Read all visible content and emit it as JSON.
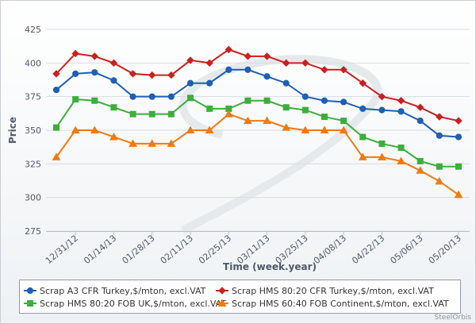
{
  "chart_data": {
    "type": "line",
    "x_label": "Time (week.year)",
    "y_label": "Price",
    "credit": "SteelOrbis",
    "categories": [
      null,
      "12/31/12",
      null,
      "01/14/13",
      null,
      "01/28/13",
      null,
      "02/11/13",
      null,
      "02/25/13",
      null,
      "03/11/13",
      null,
      "03/25/13",
      null,
      "04/08/13",
      null,
      "04/22/13",
      null,
      "05/06/13",
      null,
      "05/20/13"
    ],
    "series": [
      {
        "name": "Scrap A3 CFR Turkey,$/mton, excl.VAT",
        "color": "#1f5fb5",
        "marker": "circle",
        "values": [
          380,
          392,
          393,
          387,
          375,
          375,
          375,
          385,
          385,
          395,
          395,
          390,
          385,
          375,
          372,
          371,
          366,
          365,
          364,
          357,
          346,
          345
        ]
      },
      {
        "name": "Scrap HMS 80:20 CFR Turkey,$/mton, excl.VAT",
        "color": "#cc1f1f",
        "marker": "diamond",
        "values": [
          392,
          407,
          405,
          400,
          392,
          391,
          391,
          402,
          400,
          410,
          405,
          405,
          400,
          400,
          395,
          395,
          385,
          375,
          372,
          367,
          360,
          357
        ]
      },
      {
        "name": "Scrap HMS 80:20 FOB UK,$/mton, excl.VAT",
        "color": "#3cae3c",
        "marker": "square",
        "values": [
          352,
          373,
          372,
          367,
          362,
          362,
          362,
          374,
          366,
          366,
          372,
          372,
          367,
          365,
          360,
          357,
          345,
          340,
          337,
          327,
          323,
          323
        ]
      },
      {
        "name": "Scrap HMS 60:40 FOB Continent,$/mton, excl.VAT",
        "color": "#f07a10",
        "marker": "triangle",
        "values": [
          330,
          350,
          350,
          345,
          340,
          340,
          340,
          350,
          350,
          362,
          357,
          357,
          352,
          350,
          350,
          350,
          330,
          330,
          327,
          320,
          312,
          302
        ]
      }
    ],
    "ylim": [
      275,
      425
    ],
    "yticks": [
      275,
      300,
      325,
      350,
      375,
      400,
      425
    ],
    "grid": true
  }
}
